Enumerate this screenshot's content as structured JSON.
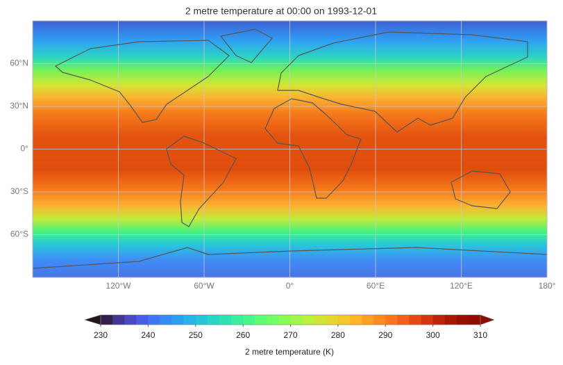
{
  "chart_data": {
    "type": "map",
    "title": "2 metre temperature at 00:00 on 1993-12-01",
    "xlim": [
      -180,
      180
    ],
    "ylim": [
      -90,
      90
    ],
    "xticks": [
      {
        "value": -120,
        "label": "120°W"
      },
      {
        "value": -60,
        "label": "60°W"
      },
      {
        "value": 0,
        "label": "0°"
      },
      {
        "value": 60,
        "label": "60°E"
      },
      {
        "value": 120,
        "label": "120°E"
      },
      {
        "value": 180,
        "label": "180°"
      }
    ],
    "yticks": [
      {
        "value": 60,
        "label": "60°N"
      },
      {
        "value": 30,
        "label": "30°N"
      },
      {
        "value": 0,
        "label": "0°"
      },
      {
        "value": -30,
        "label": "30°S"
      },
      {
        "value": -60,
        "label": "60°S"
      }
    ],
    "grid": true,
    "colorbar": {
      "label": "2 metre temperature (K)",
      "clim": [
        230,
        310
      ],
      "ticks": [
        230,
        240,
        250,
        260,
        270,
        280,
        290,
        300,
        310
      ],
      "level_step": 2.5,
      "colormap": "turbo",
      "extend": "both"
    }
  }
}
